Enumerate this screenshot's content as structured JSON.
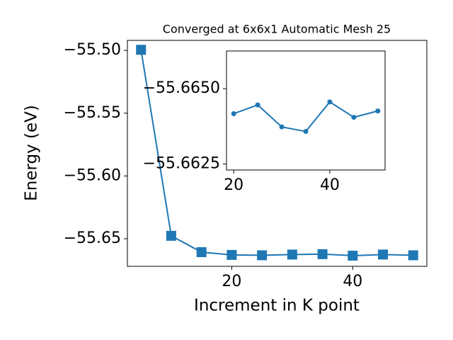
{
  "chart_data": [
    {
      "type": "line",
      "title": "Converged at 6x6x1 Automatic Mesh 25",
      "x_label": "Increment in K point",
      "y_label": "Energy (eV)",
      "x": [
        5,
        10,
        15,
        20,
        25,
        30,
        35,
        40,
        45,
        50
      ],
      "values": [
        -55.4995,
        -55.6477,
        -55.6607,
        -55.6629,
        -55.6632,
        -55.6626,
        -55.6623,
        -55.6635,
        -55.6626,
        -55.6632
      ],
      "color": "#1f77b4",
      "marker": "square",
      "xlim": [
        2.75,
        52.25
      ],
      "ylim": [
        -55.672,
        -55.492
      ],
      "xticks": [
        20,
        40
      ],
      "yticks": [
        {
          "value": -55.65,
          "label": "−55.65"
        },
        {
          "value": -55.6,
          "label": "−55.60"
        },
        {
          "value": -55.55,
          "label": "−55.55"
        },
        {
          "value": -55.5,
          "label": "−55.50"
        }
      ]
    },
    {
      "type": "line",
      "x": [
        20,
        25,
        30,
        35,
        40,
        45,
        50
      ],
      "values": [
        -55.66417,
        -55.66446,
        -55.66373,
        -55.66358,
        -55.66456,
        -55.66405,
        -55.66426
      ],
      "color": "#1f77b4",
      "marker": "circle",
      "xlim": [
        18.5,
        51.5
      ],
      "ylim": [
        -55.6623,
        -55.66625
      ],
      "xticks": [
        20,
        40
      ],
      "yticks": [
        {
          "value": -55.665,
          "label": "−55.6650"
        },
        {
          "value": -55.6625,
          "label": "−55.6625"
        }
      ]
    }
  ]
}
